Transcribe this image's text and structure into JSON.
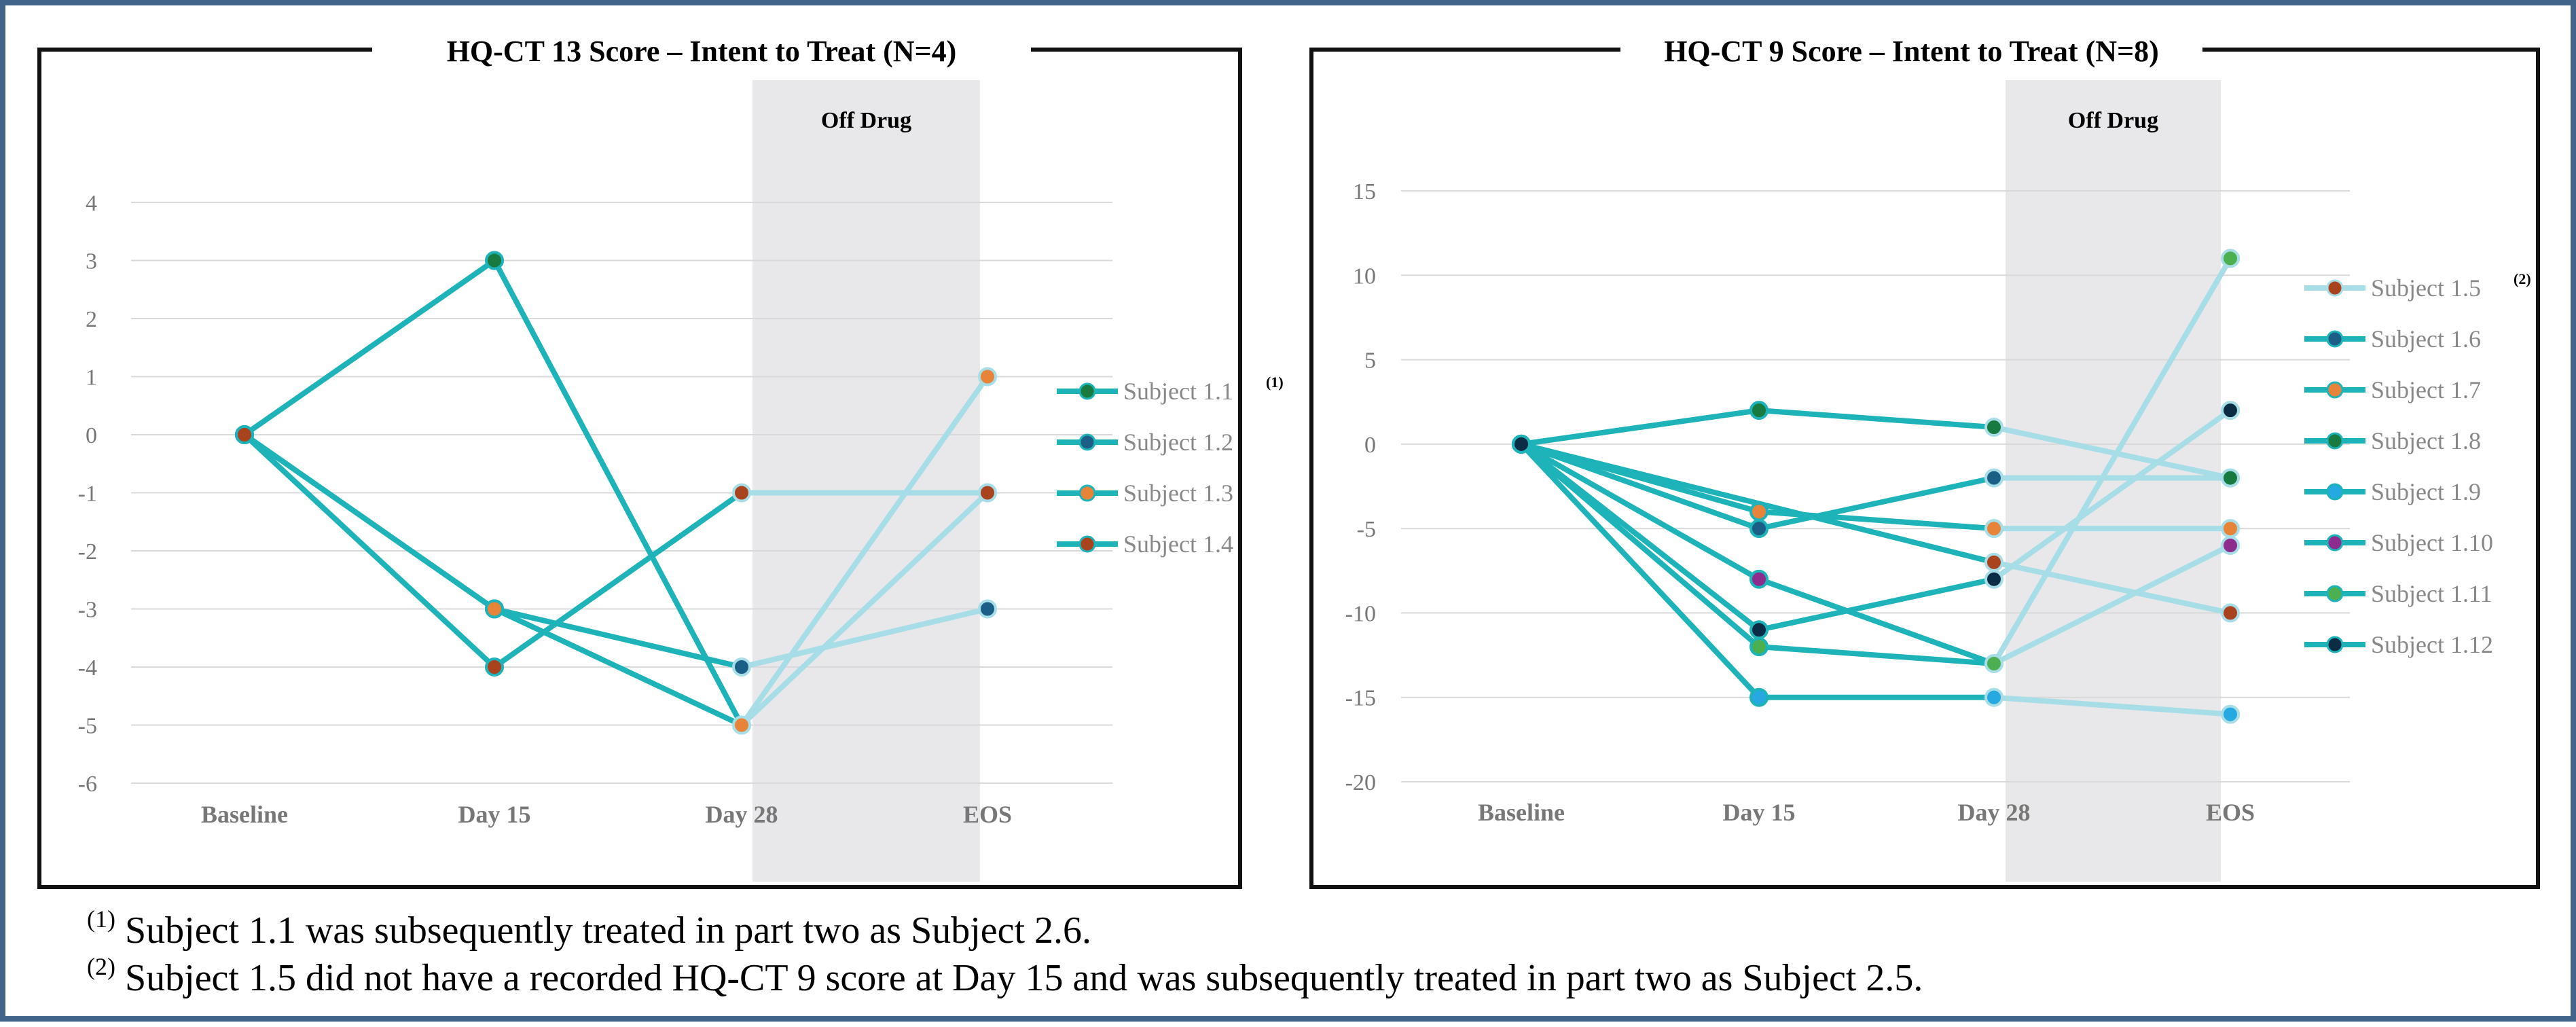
{
  "colors": {
    "border": "#41648a",
    "line_on_drug": "#1db3b8",
    "line_off_drug": "#a6dde6",
    "off_drug_band": "#e8e8ea",
    "grid": "#d9d9d9"
  },
  "chart_data": [
    {
      "type": "line",
      "title": "HQ-CT 13 Score – Intent to Treat (N=4)",
      "band_label": "Off Drug",
      "categories": [
        "Baseline",
        "Day 15",
        "Day 28",
        "EOS"
      ],
      "ylim": [
        -6,
        4
      ],
      "yticks": [
        4,
        3,
        2,
        1,
        0,
        -1,
        -2,
        -3,
        -4,
        -5,
        -6
      ],
      "off_drug_from_category": "Day 28",
      "legend_position": "right",
      "series": [
        {
          "name": "Subject 1.1",
          "note": "(1)",
          "marker_color": "#177a3f",
          "values": [
            0,
            3,
            -5,
            -1
          ]
        },
        {
          "name": "Subject 1.2",
          "note": "",
          "marker_color": "#1b5f86",
          "values": [
            0,
            -3,
            -4,
            -3
          ]
        },
        {
          "name": "Subject 1.3",
          "note": "",
          "marker_color": "#e8833a",
          "values": [
            0,
            -3,
            -5,
            1
          ]
        },
        {
          "name": "Subject 1.4",
          "note": "",
          "marker_color": "#a9431e",
          "values": [
            0,
            -4,
            -1,
            -1
          ]
        }
      ]
    },
    {
      "type": "line",
      "title": "HQ-CT 9 Score – Intent to Treat (N=8)",
      "band_label": "Off Drug",
      "categories": [
        "Baseline",
        "Day 15",
        "Day 28",
        "EOS"
      ],
      "ylim": [
        -20,
        15
      ],
      "yticks": [
        15,
        10,
        5,
        0,
        -5,
        -10,
        -15,
        -20
      ],
      "off_drug_from_category": "Day 28",
      "legend_position": "right",
      "series": [
        {
          "name": "Subject 1.5",
          "note": "(2)",
          "marker_color": "#a9431e",
          "values": [
            0,
            null,
            -7,
            -10
          ]
        },
        {
          "name": "Subject 1.6",
          "note": "",
          "marker_color": "#1b5f86",
          "values": [
            0,
            -5,
            -2,
            -2
          ]
        },
        {
          "name": "Subject 1.7",
          "note": "",
          "marker_color": "#e8833a",
          "values": [
            0,
            -4,
            -5,
            -5
          ]
        },
        {
          "name": "Subject 1.8",
          "note": "",
          "marker_color": "#177a3f",
          "values": [
            0,
            2,
            1,
            -2
          ]
        },
        {
          "name": "Subject 1.9",
          "note": "",
          "marker_color": "#26a9e0",
          "values": [
            0,
            -15,
            -15,
            -16
          ]
        },
        {
          "name": "Subject 1.10",
          "note": "",
          "marker_color": "#8e2c8e",
          "values": [
            0,
            -8,
            -13,
            -6
          ]
        },
        {
          "name": "Subject 1.11",
          "note": "",
          "marker_color": "#4caf50",
          "values": [
            0,
            -12,
            -13,
            11
          ]
        },
        {
          "name": "Subject 1.12",
          "note": "",
          "marker_color": "#0a2d45",
          "values": [
            0,
            -11,
            -8,
            2
          ]
        }
      ]
    }
  ],
  "footnotes": [
    {
      "mark": "(1)",
      "text": "Subject 1.1 was subsequently treated in part two as Subject 2.6."
    },
    {
      "mark": "(2)",
      "text": "Subject 1.5 did not have a recorded HQ-CT 9 score at Day 15 and was subsequently treated in part two as Subject 2.5."
    }
  ]
}
